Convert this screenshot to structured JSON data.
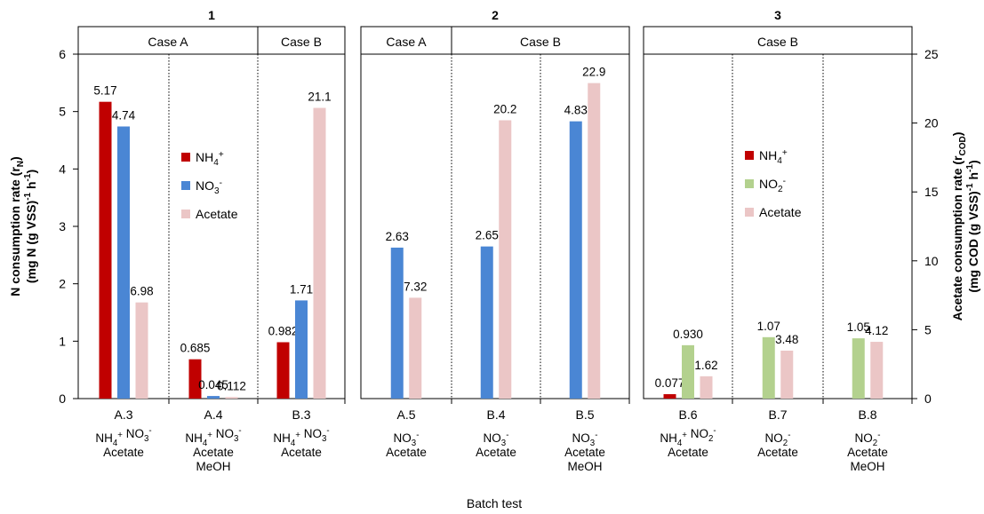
{
  "colors": {
    "NH4": "#c00000",
    "NO3": "#4a86d4",
    "NO2": "#b3d18e",
    "Acetate": "#ebc6c6",
    "frame": "#000000"
  },
  "chart_data": {
    "type": "bar",
    "xlabel": "Batch test",
    "ylabel_left": [
      "N consumption rate (r",
      "N",
      ")",
      "(mg N (g VSS)",
      "-1",
      " h",
      "-1",
      ")"
    ],
    "ylabel_right": [
      "Acetate consumption rate (r",
      "COD",
      ")",
      "(mg COD (g VSS)",
      "-1",
      " h",
      "-1",
      ")"
    ],
    "ylim_left": [
      0,
      6
    ],
    "ylim_right": [
      0,
      25
    ],
    "yticks_left": [
      "0",
      "1",
      "2",
      "3",
      "4",
      "5",
      "6"
    ],
    "yticks_right": [
      "0",
      "5",
      "10",
      "15",
      "20",
      "25"
    ],
    "panels": [
      {
        "title": "1",
        "cases": [
          {
            "label": "Case A",
            "span": [
              0,
              2
            ]
          },
          {
            "label": "Case B",
            "span": [
              2,
              3
            ]
          }
        ],
        "legend": [
          {
            "key": "NH4",
            "main": "NH",
            "sub": "4",
            "sup": "+"
          },
          {
            "key": "NO3",
            "main": "NO",
            "sub": "3",
            "sup": "-"
          },
          {
            "key": "Acetate",
            "main": "Acetate",
            "sub": "",
            "sup": ""
          }
        ],
        "groups": [
          {
            "category": "A.3",
            "sub_lines": [
              [
                [
                  "NH",
                  "4",
                  "+"
                ],
                [
                  "  NO",
                  "3",
                  "-"
                ]
              ],
              [
                [
                  "Acetate",
                  "",
                  ""
                ]
              ]
            ],
            "bars": [
              {
                "series": "NH4",
                "value": 5.17,
                "axis": "left",
                "label": "5.17"
              },
              {
                "series": "NO3",
                "value": 4.74,
                "axis": "left",
                "label": "4.74"
              },
              {
                "series": "Acetate",
                "value": 6.98,
                "axis": "right",
                "label": "6.98"
              }
            ]
          },
          {
            "category": "A.4",
            "sub_lines": [
              [
                [
                  "NH",
                  "4",
                  "+"
                ],
                [
                  "  NO",
                  "3",
                  "-"
                ]
              ],
              [
                [
                  "Acetate",
                  "",
                  ""
                ]
              ],
              [
                [
                  "MeOH",
                  "",
                  ""
                ]
              ]
            ],
            "bars": [
              {
                "series": "NH4",
                "value": 0.685,
                "axis": "left",
                "label": "0.685"
              },
              {
                "series": "NO3",
                "value": 0.045,
                "axis": "left",
                "label": "0.045"
              },
              {
                "series": "Acetate",
                "value": 0.112,
                "axis": "right",
                "label": "0.112"
              }
            ]
          },
          {
            "category": "B.3",
            "sub_lines": [
              [
                [
                  "NH",
                  "4",
                  "+"
                ],
                [
                  "  NO",
                  "3",
                  "-"
                ]
              ],
              [
                [
                  "Acetate",
                  "",
                  ""
                ]
              ]
            ],
            "bars": [
              {
                "series": "NH4",
                "value": 0.982,
                "axis": "left",
                "label": "0.982"
              },
              {
                "series": "NO3",
                "value": 1.71,
                "axis": "left",
                "label": "1.71"
              },
              {
                "series": "Acetate",
                "value": 21.1,
                "axis": "right",
                "label": "21.1"
              }
            ]
          }
        ]
      },
      {
        "title": "2",
        "cases": [
          {
            "label": "Case A",
            "span": [
              0,
              0.6
            ]
          },
          {
            "label": "Case B",
            "span": [
              0.6,
              3
            ]
          }
        ],
        "legend": [],
        "groups": [
          {
            "category": "A.5",
            "sub_lines": [
              [
                [
                  "NO",
                  "3",
                  "-"
                ]
              ],
              [
                [
                  "Acetate",
                  "",
                  ""
                ]
              ]
            ],
            "bars": [
              {
                "series": "NO3",
                "value": 2.63,
                "axis": "left",
                "label": "2.63"
              },
              {
                "series": "Acetate",
                "value": 7.32,
                "axis": "right",
                "label": "7.32"
              }
            ]
          },
          {
            "category": "B.4",
            "sub_lines": [
              [
                [
                  "NO",
                  "3",
                  "-"
                ]
              ],
              [
                [
                  "Acetate",
                  "",
                  ""
                ]
              ]
            ],
            "bars": [
              {
                "series": "NO3",
                "value": 2.65,
                "axis": "left",
                "label": "2.65"
              },
              {
                "series": "Acetate",
                "value": 20.2,
                "axis": "right",
                "label": "20.2"
              }
            ]
          },
          {
            "category": "B.5",
            "sub_lines": [
              [
                [
                  "NO",
                  "3",
                  "-"
                ]
              ],
              [
                [
                  "Acetate",
                  "",
                  ""
                ]
              ],
              [
                [
                  "MeOH",
                  "",
                  ""
                ]
              ]
            ],
            "bars": [
              {
                "series": "NO3",
                "value": 4.83,
                "axis": "left",
                "label": "4.83"
              },
              {
                "series": "Acetate",
                "value": 22.9,
                "axis": "right",
                "label": "22.9"
              }
            ]
          }
        ]
      },
      {
        "title": "3",
        "cases": [
          {
            "label": "Case B",
            "span": [
              0,
              3
            ]
          }
        ],
        "legend": [
          {
            "key": "NH4",
            "main": "NH",
            "sub": "4",
            "sup": "+"
          },
          {
            "key": "NO2",
            "main": "NO",
            "sub": "2",
            "sup": "-"
          },
          {
            "key": "Acetate",
            "main": "Acetate",
            "sub": "",
            "sup": ""
          }
        ],
        "groups": [
          {
            "category": "B.6",
            "sub_lines": [
              [
                [
                  "NH",
                  "4",
                  "+"
                ],
                [
                  "  NO",
                  "2",
                  "-"
                ]
              ],
              [
                [
                  "Acetate",
                  "",
                  ""
                ]
              ]
            ],
            "bars": [
              {
                "series": "NH4",
                "value": 0.077,
                "axis": "left",
                "label": "0.077"
              },
              {
                "series": "NO2",
                "value": 0.93,
                "axis": "left",
                "label": "0.930"
              },
              {
                "series": "Acetate",
                "value": 1.62,
                "axis": "right",
                "label": "1.62"
              }
            ]
          },
          {
            "category": "B.7",
            "sub_lines": [
              [
                [
                  "NO",
                  "2",
                  "-"
                ]
              ],
              [
                [
                  "Acetate",
                  "",
                  ""
                ]
              ]
            ],
            "bars": [
              {
                "series": "NO2",
                "value": 1.07,
                "axis": "left",
                "label": "1.07"
              },
              {
                "series": "Acetate",
                "value": 3.48,
                "axis": "right",
                "label": "3.48"
              }
            ]
          },
          {
            "category": "B.8",
            "sub_lines": [
              [
                [
                  "NO",
                  "2",
                  "-"
                ]
              ],
              [
                [
                  "Acetate",
                  "",
                  ""
                ]
              ],
              [
                [
                  "MeOH",
                  "",
                  ""
                ]
              ]
            ],
            "bars": [
              {
                "series": "NO2",
                "value": 1.05,
                "axis": "left",
                "label": "1.05"
              },
              {
                "series": "Acetate",
                "value": 4.12,
                "axis": "right",
                "label": "4.12"
              }
            ]
          }
        ]
      }
    ]
  }
}
